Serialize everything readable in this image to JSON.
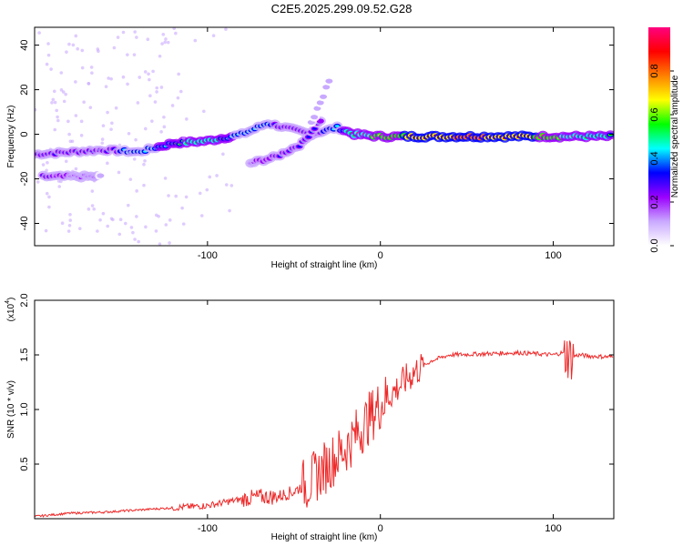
{
  "title": "C2E5.2025.299.09.52.G28",
  "chart_data": [
    {
      "type": "heatmap",
      "xlabel": "Height of straight line (km)",
      "ylabel": "Frequency (Hz)",
      "xlim": [
        -200,
        135
      ],
      "ylim": [
        -50,
        48
      ],
      "xticks": [
        -100,
        0,
        100
      ],
      "yticks": [
        -40,
        -20,
        0,
        20,
        40
      ],
      "colorbar": {
        "label": "Normalized spectral amplitude",
        "range": [
          0,
          1
        ],
        "ticks": [
          "0.0",
          "0.2",
          "0.4",
          "0.6",
          "0.8"
        ],
        "colors": [
          "#ffffff",
          "#c9a9ff",
          "#9b00ff",
          "#0000ff",
          "#00ffff",
          "#00ff00",
          "#ffff00",
          "#ff8000",
          "#ff0000",
          "#ff0080"
        ]
      },
      "traces": [
        {
          "name": "main",
          "points": [
            [
              -200,
              -9,
              0.3
            ],
            [
              -180,
              -8,
              0.35
            ],
            [
              -160,
              -7,
              0.3
            ],
            [
              -140,
              -8,
              0.45
            ],
            [
              -120,
              -4,
              0.5
            ],
            [
              -100,
              -3,
              0.55
            ],
            [
              -80,
              0,
              0.45
            ],
            [
              -65,
              5,
              0.4
            ],
            [
              -55,
              3,
              0.3
            ],
            [
              -40,
              0,
              0.35
            ],
            [
              -25,
              3,
              0.4
            ],
            [
              -15,
              0,
              0.6
            ],
            [
              0,
              -1,
              0.7
            ],
            [
              20,
              -1,
              0.85
            ],
            [
              50,
              -1,
              1.0
            ],
            [
              80,
              -1,
              0.9
            ],
            [
              100,
              -1,
              0.7
            ],
            [
              115,
              -1,
              0.6
            ],
            [
              135,
              -1,
              0.5
            ]
          ]
        },
        {
          "name": "lower",
          "points": [
            [
              -195,
              -19,
              0.3
            ],
            [
              -175,
              -19,
              0.2
            ],
            [
              -160,
              -19,
              0.15
            ]
          ]
        },
        {
          "name": "secondary",
          "points": [
            [
              -115,
              -19,
              0.3
            ]
          ]
        },
        {
          "name": "rising",
          "points": [
            [
              -75,
              -13,
              0.2
            ],
            [
              -60,
              -10,
              0.3
            ],
            [
              -45,
              -4,
              0.35
            ],
            [
              -38,
              3,
              0.3
            ],
            [
              -33,
              8,
              0.25
            ]
          ]
        },
        {
          "name": "upper",
          "points": [
            [
              -40,
              5,
              0.15
            ],
            [
              -33,
              17,
              0.1
            ],
            [
              -28,
              28,
              0.1
            ]
          ]
        }
      ]
    },
    {
      "type": "line",
      "xlabel": "Height of straight line (km)",
      "ylabel": "SNR (10 * v/v)",
      "scale_label": "(x10",
      "scale_exp": "4",
      "xlim": [
        -200,
        135
      ],
      "ylim": [
        0,
        2.0
      ],
      "xticks": [
        -100,
        0,
        100
      ],
      "yticks": [
        "0.5",
        "1.0",
        "1.5",
        "2.0"
      ],
      "series": [
        {
          "name": "SNR",
          "color": "#ee2a2a",
          "x": [
            -200,
            -180,
            -160,
            -140,
            -120,
            -100,
            -90,
            -80,
            -70,
            -60,
            -50,
            -40,
            -30,
            -20,
            -10,
            0,
            10,
            20,
            30,
            40,
            60,
            80,
            100,
            105,
            110,
            115,
            120,
            135
          ],
          "y": [
            0.02,
            0.05,
            0.06,
            0.08,
            0.1,
            0.12,
            0.15,
            0.18,
            0.2,
            0.2,
            0.25,
            0.35,
            0.5,
            0.65,
            0.85,
            1.05,
            1.2,
            1.35,
            1.45,
            1.5,
            1.51,
            1.52,
            1.5,
            1.52,
            1.48,
            1.5,
            1.49,
            1.48
          ]
        }
      ]
    }
  ]
}
